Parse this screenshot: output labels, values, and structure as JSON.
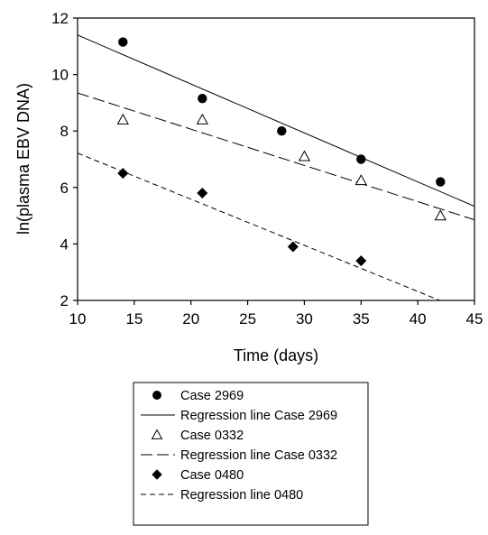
{
  "chart_data": {
    "type": "scatter",
    "title": "",
    "xlabel": "Time (days)",
    "ylabel": "ln(plasma EBV DNA)",
    "xlim": [
      10,
      45
    ],
    "ylim": [
      2,
      12
    ],
    "xticks": [
      10,
      15,
      20,
      25,
      30,
      35,
      40,
      45
    ],
    "yticks": [
      2,
      4,
      6,
      8,
      10,
      12
    ],
    "grid": false,
    "legend_position": "below",
    "series": [
      {
        "name": "Case 2969",
        "marker": "filled-circle",
        "color": "#000000",
        "points": [
          [
            14,
            11.15
          ],
          [
            21,
            9.15
          ],
          [
            28,
            8.0
          ],
          [
            35,
            7.0
          ],
          [
            42,
            6.2
          ]
        ],
        "regression": {
          "name": "Regression line Case 2969",
          "style": "solid",
          "intercept": 13.13,
          "slope": -0.1733
        }
      },
      {
        "name": "Case 0332",
        "marker": "open-triangle",
        "color": "#000000",
        "points": [
          [
            14,
            8.4
          ],
          [
            21,
            8.4
          ],
          [
            30,
            7.1
          ],
          [
            35,
            6.25
          ],
          [
            42,
            5.0
          ]
        ],
        "regression": {
          "name": "Regression line Case 0332",
          "style": "long-dash",
          "intercept": 10.63,
          "slope": -0.1283
        }
      },
      {
        "name": "Case 0480",
        "marker": "filled-diamond",
        "color": "#000000",
        "points": [
          [
            14,
            6.5
          ],
          [
            21,
            5.8
          ],
          [
            29,
            3.9
          ],
          [
            35,
            3.4
          ]
        ],
        "regression": {
          "name": "Regression line 0480",
          "style": "short-dash",
          "intercept": 8.85,
          "slope": -0.1633
        }
      }
    ]
  }
}
